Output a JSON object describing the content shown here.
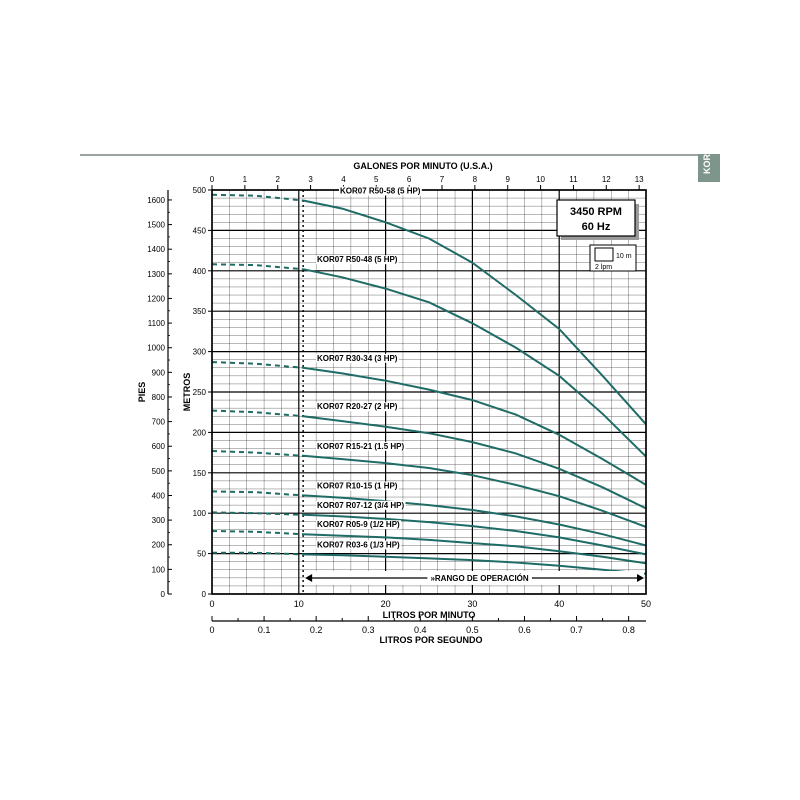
{
  "side_tab": "KOR",
  "chart_data": {
    "type": "line",
    "rpm_label": "3450 RPM",
    "hz_label": "60 Hz",
    "scale_box": {
      "label_m": "10 m",
      "label_gpm": "2 lpm"
    },
    "top_axis_label": "GALONES POR MINUTO (U.S.A.)",
    "top_ticks": [
      0,
      1,
      2,
      3,
      4,
      5,
      6,
      7,
      8,
      9,
      10,
      11,
      12,
      13
    ],
    "bottom_axis_label": "LITROS POR MINUTO",
    "bottom_ticks": [
      0,
      10,
      20,
      30,
      40,
      50
    ],
    "second_axis_label": "LITROS POR SEGUNDO",
    "second_ticks": [
      "0",
      "0.1",
      "0.2",
      "0.3",
      "0.4",
      "0.5",
      "0.6",
      "0.7",
      "0.8"
    ],
    "y_label_m": "METROS",
    "y_ticks_m": [
      0,
      50,
      100,
      150,
      200,
      250,
      300,
      350,
      400,
      450,
      500
    ],
    "y_label_ft": "PIES",
    "y_ticks_ft": [
      0,
      100,
      200,
      300,
      400,
      500,
      600,
      700,
      800,
      900,
      1000,
      1100,
      1200,
      1300,
      1400,
      1500,
      1600
    ],
    "xlim": [
      0,
      50
    ],
    "ylim": [
      0,
      500
    ],
    "operating_range_label": "»RANGO DE OPERACIÓN",
    "operating_range": [
      10.5,
      50
    ],
    "series": [
      {
        "name": "KOR07 R50-58 (5 HP)",
        "x": [
          0,
          5,
          10.5,
          15,
          20,
          25,
          30,
          35,
          40,
          45,
          50
        ],
        "y": [
          494,
          493,
          487,
          477,
          460,
          440,
          410,
          370,
          328,
          270,
          210
        ]
      },
      {
        "name": "KOR07 R50-48 (5 HP)",
        "x": [
          0,
          5,
          10.5,
          15,
          20,
          25,
          30,
          35,
          40,
          45,
          50
        ],
        "y": [
          408,
          407,
          402,
          392,
          378,
          361,
          335,
          305,
          270,
          223,
          170
        ]
      },
      {
        "name": "KOR07 R30-34 (3 HP)",
        "x": [
          0,
          5,
          10.5,
          15,
          20,
          25,
          30,
          35,
          40,
          45,
          50
        ],
        "y": [
          287,
          285,
          280,
          273,
          264,
          253,
          240,
          222,
          197,
          167,
          135
        ]
      },
      {
        "name": "KOR07 R20-27 (2 HP)",
        "x": [
          0,
          5,
          10.5,
          15,
          20,
          25,
          30,
          35,
          40,
          45,
          50
        ],
        "y": [
          227,
          225,
          220,
          214,
          207,
          199,
          188,
          174,
          155,
          132,
          106
        ]
      },
      {
        "name": "KOR07 R15-21 (1.5 HP)",
        "x": [
          0,
          5,
          10.5,
          15,
          20,
          25,
          30,
          35,
          40,
          45,
          50
        ],
        "y": [
          177,
          175,
          171,
          167,
          162,
          156,
          147,
          135,
          121,
          103,
          83
        ]
      },
      {
        "name": "KOR07 R10-15 (1 HP)",
        "x": [
          0,
          5,
          10.5,
          15,
          20,
          25,
          30,
          35,
          40,
          45,
          50
        ],
        "y": [
          127,
          126,
          122,
          119,
          115,
          110,
          104,
          96,
          86,
          74,
          60
        ]
      },
      {
        "name": "KOR07 R07-12 (3/4 HP)",
        "x": [
          0,
          5,
          10.5,
          15,
          20,
          25,
          30,
          35,
          40,
          45,
          50
        ],
        "y": [
          101,
          100,
          98,
          96,
          93,
          89,
          84,
          78,
          70,
          60,
          49
        ]
      },
      {
        "name": "KOR07 R05-9 (1/2 HP)",
        "x": [
          0,
          5,
          10.5,
          15,
          20,
          25,
          30,
          35,
          40,
          45,
          50
        ],
        "y": [
          78,
          77,
          74,
          72,
          70,
          67,
          63,
          59,
          53,
          46,
          38
        ]
      },
      {
        "name": "KOR07 R03-6 (1/3 HP)",
        "x": [
          0,
          5,
          10.5,
          15,
          20,
          25,
          30,
          35,
          40,
          45,
          50
        ],
        "y": [
          51,
          51,
          49,
          48,
          46,
          44,
          42,
          39,
          35,
          30,
          25
        ]
      }
    ],
    "colors": {
      "curve": "#1f6b66",
      "grid": "#000000",
      "border": "#000000"
    }
  }
}
